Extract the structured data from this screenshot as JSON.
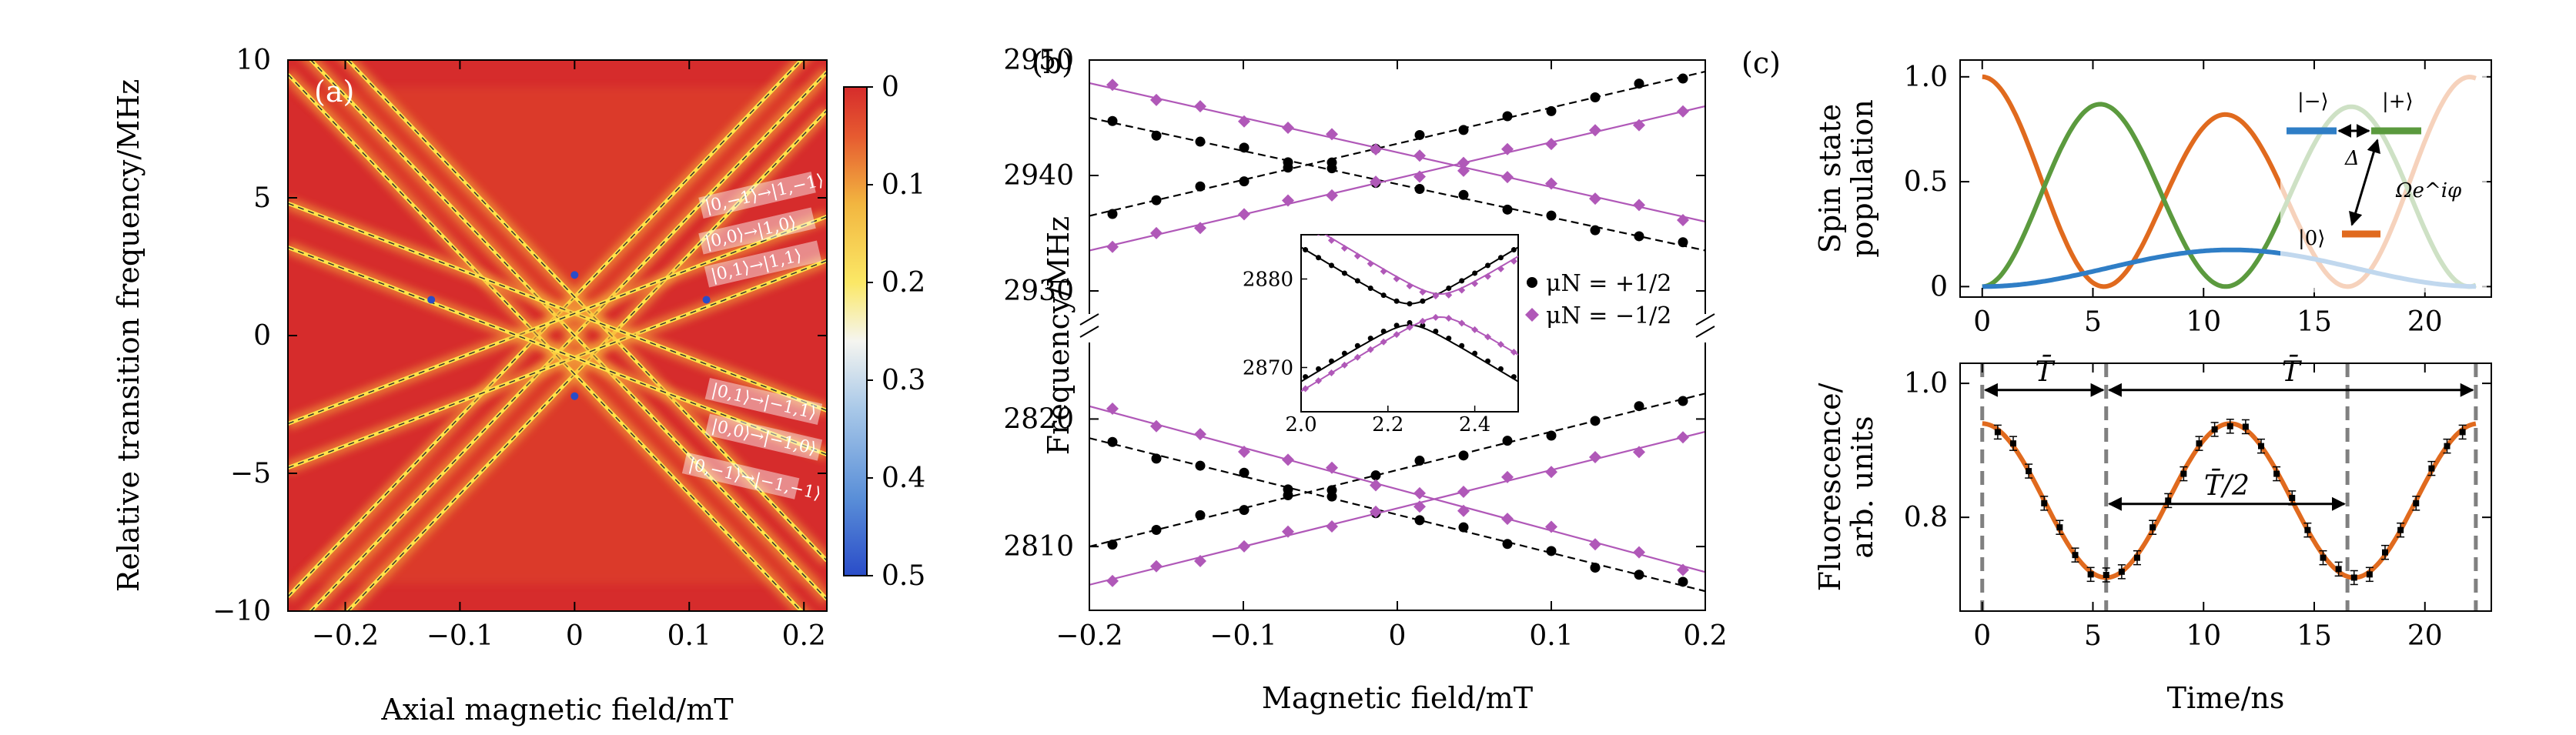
{
  "panels": {
    "a": {
      "label": "(a)",
      "xlabel": "Axial magnetic field/mT",
      "ylabel": "Relative transition frequency/MHz",
      "colorbar_ticks": [
        "0",
        "0.1",
        "0.2",
        "0.3",
        "0.4",
        "0.5"
      ],
      "annotations": [
        "|0,−1⟩→|1,−1⟩",
        "|0,0⟩→|1,0⟩",
        "|0,1⟩→|1,1⟩",
        "|0,1⟩→|−1,1⟩",
        "|0,0⟩→|−1,0⟩",
        "|0,−1⟩→|−1,−1⟩"
      ]
    },
    "b": {
      "label": "(b)",
      "xlabel": "Magnetic field/mT",
      "ylabel": "Frequency/MHz",
      "legend": [
        "μN = +1/2",
        "μN = −1/2"
      ]
    },
    "c": {
      "label": "(c)",
      "top_ylabel_line1": "Spin state",
      "top_ylabel_line2": "population",
      "bottom_ylabel_line1": "Fluorescence/",
      "bottom_ylabel_line2": "arb. units",
      "xlabel": "Time/ns",
      "level_minus": "|−⟩",
      "level_plus": "|+⟩",
      "level_zero": "|0⟩",
      "delta_label": "Δ",
      "omega_label": "Ωe^iφ",
      "period_label": "T̄",
      "half_period_label": "T̄/2"
    }
  },
  "chart_data": [
    {
      "type": "heatmap",
      "panel": "a",
      "xlim": [
        -0.25,
        0.22
      ],
      "ylim": [
        -10,
        10
      ],
      "xticks": [
        -0.2,
        -0.1,
        0,
        0.1,
        0.2
      ],
      "yticks": [
        -10,
        -5,
        0,
        5,
        10
      ],
      "colorbar_range": [
        0,
        0.5
      ],
      "background_colour": "#d62c2c",
      "line_colour": "#ffe34a",
      "transitions": [
        {
          "name": "|0,−1⟩→|1,−1⟩",
          "slope": 43.5,
          "intercept": -1.4
        },
        {
          "name": "|0,0⟩→|1,0⟩",
          "slope": 43.5,
          "intercept": 0.0
        },
        {
          "name": "|0,1⟩→|1,1⟩",
          "slope": 43.5,
          "intercept": 1.4
        },
        {
          "name": "|0,1⟩→|−1,1⟩",
          "slope": -43.5,
          "intercept": 1.4
        },
        {
          "name": "|0,0⟩→|−1,0⟩",
          "slope": -43.5,
          "intercept": 0.0
        },
        {
          "name": "|0,−1⟩→|−1,−1⟩",
          "slope": -43.5,
          "intercept": -1.4
        },
        {
          "name": "",
          "slope": 16.0,
          "intercept": -0.8
        },
        {
          "name": "",
          "slope": -16.0,
          "intercept": 0.8
        },
        {
          "name": "",
          "slope": 16.0,
          "intercept": 0.8
        },
        {
          "name": "",
          "slope": -16.0,
          "intercept": -0.8
        }
      ],
      "colorbar_stops": [
        {
          "v": 0.0,
          "c": "#d62c2c"
        },
        {
          "v": 0.05,
          "c": "#e65a30"
        },
        {
          "v": 0.12,
          "c": "#f2b640"
        },
        {
          "v": 0.2,
          "c": "#fbe866"
        },
        {
          "v": 0.26,
          "c": "#f5f5f0"
        },
        {
          "v": 0.33,
          "c": "#a8c8e8"
        },
        {
          "v": 0.42,
          "c": "#5a8fd8"
        },
        {
          "v": 0.5,
          "c": "#2a4cc8"
        }
      ]
    },
    {
      "type": "scatter",
      "panel": "b",
      "xlim": [
        -0.2,
        0.2
      ],
      "xticks": [
        -0.2,
        -0.1,
        0,
        0.1,
        0.2
      ],
      "upper": {
        "ylim": [
          2928,
          2950
        ],
        "yticks": [
          2930,
          2940,
          2950
        ]
      },
      "lower": {
        "ylim": [
          2805,
          2826
        ],
        "yticks": [
          2810,
          2820
        ]
      },
      "series": [
        {
          "name": "μN = +1/2",
          "colour": "#000000",
          "marker": "circle",
          "linestyle": "dashed"
        },
        {
          "name": "μN = −1/2",
          "colour": "#b058b8",
          "marker": "diamond",
          "linestyle": "solid"
        }
      ],
      "lines": {
        "upper": [
          {
            "series": 0,
            "x0": -0.2,
            "y0": 2936.5,
            "x1": 0.2,
            "y1": 2949
          },
          {
            "series": 0,
            "x0": -0.2,
            "y0": 2945,
            "x1": 0.2,
            "y1": 2933.5
          },
          {
            "series": 1,
            "x0": -0.2,
            "y0": 2933.5,
            "x1": 0.2,
            "y1": 2946
          },
          {
            "series": 1,
            "x0": -0.2,
            "y0": 2948,
            "x1": 0.2,
            "y1": 2936
          }
        ],
        "lower": [
          {
            "series": 0,
            "x0": -0.2,
            "y0": 2810,
            "x1": 0.2,
            "y1": 2822
          },
          {
            "series": 0,
            "x0": -0.2,
            "y0": 2818.5,
            "x1": 0.2,
            "y1": 2806.5
          },
          {
            "series": 1,
            "x0": -0.2,
            "y0": 2807,
            "x1": 0.2,
            "y1": 2819
          },
          {
            "series": 1,
            "x0": -0.2,
            "y0": 2821,
            "x1": 0.2,
            "y1": 2808
          }
        ]
      },
      "inset": {
        "xlim": [
          2.0,
          2.5
        ],
        "ylim": [
          2865,
          2885
        ],
        "xticks": [
          2.0,
          2.2,
          2.4
        ],
        "yticks": [
          2870,
          2880
        ],
        "curves": [
          {
            "series": 0,
            "center": 2.25,
            "mid": 2876.0,
            "slope": 30,
            "gap": 1.2,
            "branch": "upper"
          },
          {
            "series": 0,
            "center": 2.25,
            "mid": 2876.0,
            "slope": 30,
            "gap": 1.2,
            "branch": "lower"
          },
          {
            "series": 1,
            "center": 2.32,
            "mid": 2877.0,
            "slope": 30,
            "gap": 1.3,
            "branch": "upper"
          },
          {
            "series": 1,
            "center": 2.32,
            "mid": 2877.0,
            "slope": 30,
            "gap": 1.3,
            "branch": "lower"
          }
        ]
      }
    },
    {
      "type": "line",
      "panel": "c-top",
      "xlim": [
        -1,
        23
      ],
      "ylim": [
        -0.05,
        1.08
      ],
      "xticks": [
        0,
        5,
        10,
        15,
        20
      ],
      "yticks": [
        0,
        0.5,
        1.0
      ],
      "period": 11,
      "series": [
        {
          "name": "",
          "colour": "#e06a1e",
          "kind": "orange"
        },
        {
          "name": "",
          "colour": "#5b9a3e",
          "kind": "green"
        },
        {
          "name": "",
          "colour": "#2f7ec6",
          "kind": "blue"
        }
      ]
    },
    {
      "type": "line",
      "panel": "c-bottom",
      "xlim": [
        -1,
        23
      ],
      "ylim": [
        0.66,
        1.03
      ],
      "xticks": [
        0,
        5,
        10,
        15,
        20
      ],
      "yticks": [
        0.8,
        1.0
      ],
      "fit_colour": "#e06a1e",
      "points_colour": "#000000",
      "period": 11.2,
      "mean": 0.825,
      "amplitude": 0.115,
      "points_x": [
        0.7,
        1.4,
        2.1,
        2.8,
        3.5,
        4.2,
        4.9,
        5.6,
        6.3,
        7.0,
        7.7,
        8.4,
        9.1,
        9.8,
        10.5,
        11.2,
        11.9,
        12.6,
        13.3,
        14.0,
        14.7,
        15.4,
        16.1,
        16.8,
        17.5,
        18.2,
        18.9,
        19.6,
        20.3,
        21.0,
        21.7
      ],
      "dashed_verticals_x": [
        0,
        5.6,
        16.5,
        22.3
      ],
      "arrows": [
        {
          "label": "T̄",
          "x0": 0,
          "x1": 5.6,
          "y": 0.99
        },
        {
          "label": "T̄",
          "x0": 5.6,
          "x1": 22.3,
          "y": 0.99
        },
        {
          "label": "T̄/2",
          "x0": 5.6,
          "x1": 16.5,
          "y": 0.82
        }
      ]
    }
  ]
}
